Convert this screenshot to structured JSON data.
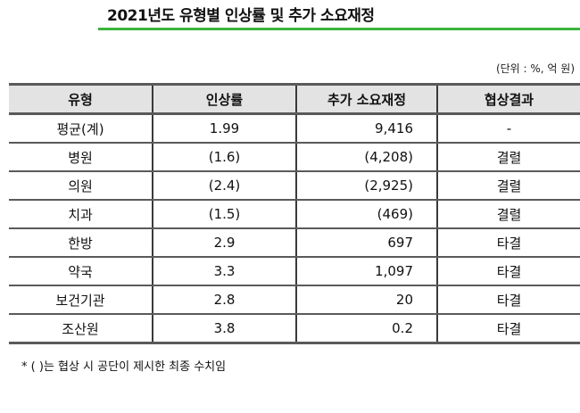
{
  "document": {
    "title": "2021년도 유형별 인상률 및 추가 소요재정",
    "accent_color": "#3cb43c",
    "unit_note": "(단위 : %, 억 원)",
    "footnote": "* (    )는 협상 시 공단이 제시한 최종 수치임"
  },
  "table": {
    "headers": [
      "유형",
      "인상률",
      "추가 소요재정",
      "협상결과"
    ],
    "rows": [
      {
        "type": "평균(계)",
        "rate": "1.99",
        "budget": "9,416",
        "result": "-"
      },
      {
        "type": "병원",
        "rate": "(1.6)",
        "budget": "(4,208)",
        "result": "결렬"
      },
      {
        "type": "의원",
        "rate": "(2.4)",
        "budget": "(2,925)",
        "result": "결렬"
      },
      {
        "type": "치과",
        "rate": "(1.5)",
        "budget": "(469)",
        "result": "결렬"
      },
      {
        "type": "한방",
        "rate": "2.9",
        "budget": "697",
        "result": "타결"
      },
      {
        "type": "약국",
        "rate": "3.3",
        "budget": "1,097",
        "result": "타결"
      },
      {
        "type": "보건기관",
        "rate": "2.8",
        "budget": "20",
        "result": "타결"
      },
      {
        "type": "조산원",
        "rate": "3.8",
        "budget": "0.2",
        "result": "타결"
      }
    ]
  }
}
